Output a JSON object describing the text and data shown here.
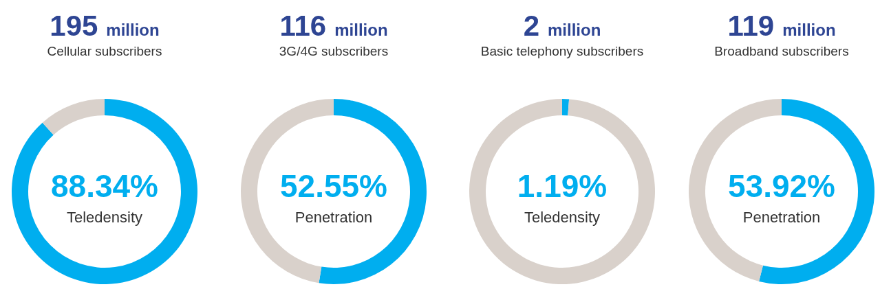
{
  "chart_data": [
    {
      "type": "donut",
      "title": "195 million",
      "subtitle": "Cellular subscribers",
      "categories": [
        "Teledensity",
        null
      ],
      "values": [
        88.34,
        11.66
      ],
      "colors": [
        "#00aeef",
        "#d9d1cb"
      ],
      "value_labels": [
        "88.34%",
        null
      ]
    },
    {
      "type": "donut",
      "title": "116 million",
      "subtitle": "3G/4G subscribers",
      "categories": [
        "Penetration",
        null
      ],
      "values": [
        52.55,
        47.45
      ],
      "colors": [
        "#00aeef",
        "#d9d1cb"
      ],
      "value_labels": [
        "52.55%",
        null
      ]
    },
    {
      "type": "donut",
      "title": "2 million",
      "subtitle": "Basic telephony subscribers",
      "categories": [
        "Teledensity",
        null
      ],
      "values": [
        1.19,
        98.81
      ],
      "colors": [
        "#00aeef",
        "#d9d1cb"
      ],
      "value_labels": [
        "1.19%",
        null
      ]
    },
    {
      "type": "donut",
      "title": "119 million",
      "subtitle": "Broadband subscribers",
      "categories": [
        "Penetration",
        null
      ],
      "values": [
        53.92,
        46.08
      ],
      "colors": [
        "#00aeef",
        "#d9d1cb"
      ],
      "value_labels": [
        "53.92%",
        null
      ]
    }
  ]
}
